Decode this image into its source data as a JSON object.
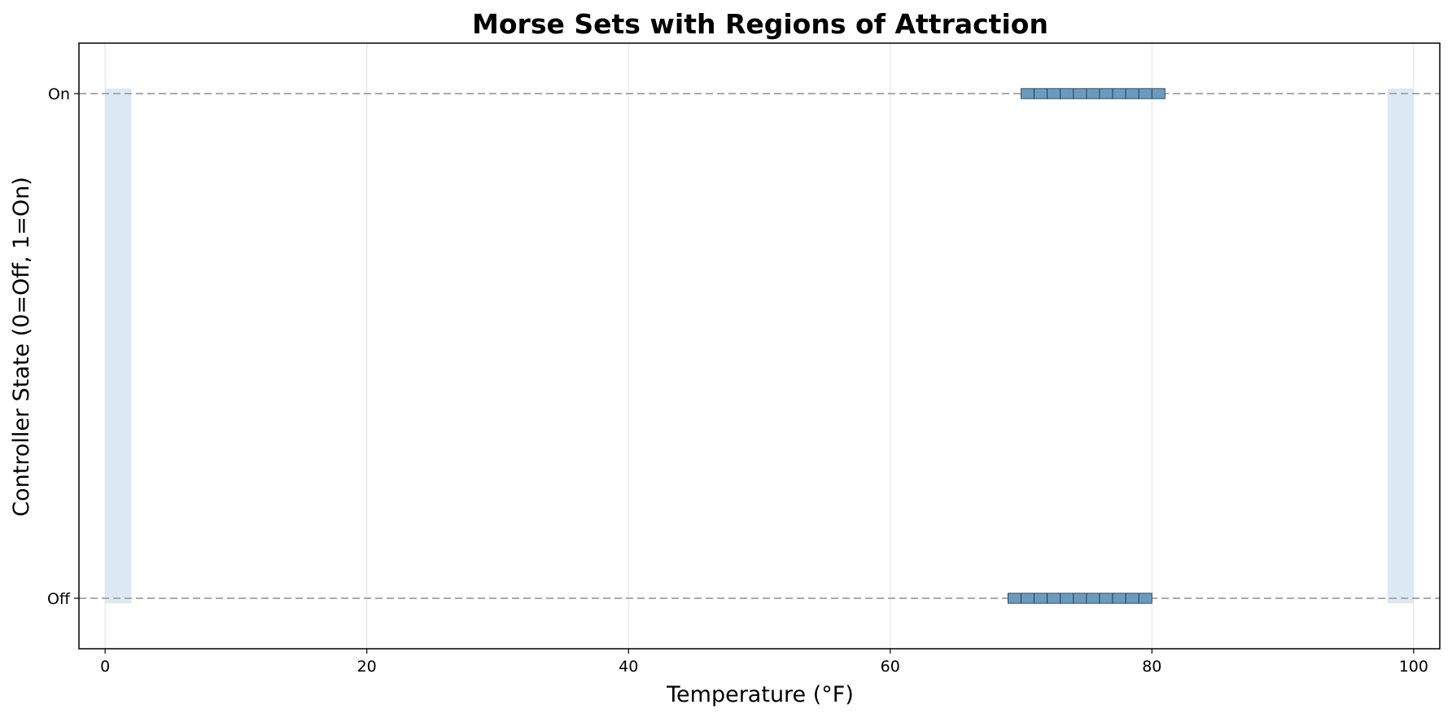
{
  "chart_data": {
    "type": "bar",
    "title": "Morse Sets with Regions of Attraction",
    "xlabel": "Temperature (°F)",
    "ylabel": "Controller State (0=Off, 1=On)",
    "xlim": [
      -2,
      102
    ],
    "ylim": [
      -0.1,
      1.1
    ],
    "x_ticks": [
      0,
      20,
      40,
      60,
      80,
      100
    ],
    "y_ticks": [
      {
        "value": 0,
        "label": "Off"
      },
      {
        "value": 1,
        "label": "On"
      }
    ],
    "grid": "x",
    "state_reference_lines": [
      0,
      1
    ],
    "regions_of_attraction": [
      {
        "x_start": 0,
        "x_end": 2,
        "y_start": -0.01,
        "y_end": 1.01
      },
      {
        "x_start": 98,
        "x_end": 100,
        "y_start": -0.01,
        "y_end": 1.01
      }
    ],
    "morse_sets": [
      {
        "state": 1,
        "cells": [
          [
            70,
            71
          ],
          [
            71,
            72
          ],
          [
            72,
            73
          ],
          [
            73,
            74
          ],
          [
            74,
            75
          ],
          [
            75,
            76
          ],
          [
            76,
            77
          ],
          [
            77,
            78
          ],
          [
            78,
            79
          ],
          [
            79,
            80
          ],
          [
            80,
            81
          ]
        ]
      },
      {
        "state": 0,
        "cells": [
          [
            69,
            70
          ],
          [
            70,
            71
          ],
          [
            71,
            72
          ],
          [
            72,
            73
          ],
          [
            73,
            74
          ],
          [
            74,
            75
          ],
          [
            75,
            76
          ],
          [
            76,
            77
          ],
          [
            77,
            78
          ],
          [
            78,
            79
          ],
          [
            79,
            80
          ]
        ]
      }
    ],
    "colors": {
      "morse_cell_fill": "#6a9bbf",
      "morse_cell_edge": "#1f2f3f",
      "region_fill": "#dce8f3",
      "reference_line": "#aaaaaa",
      "grid": "#e6e6e6",
      "axes": "#000000"
    }
  }
}
